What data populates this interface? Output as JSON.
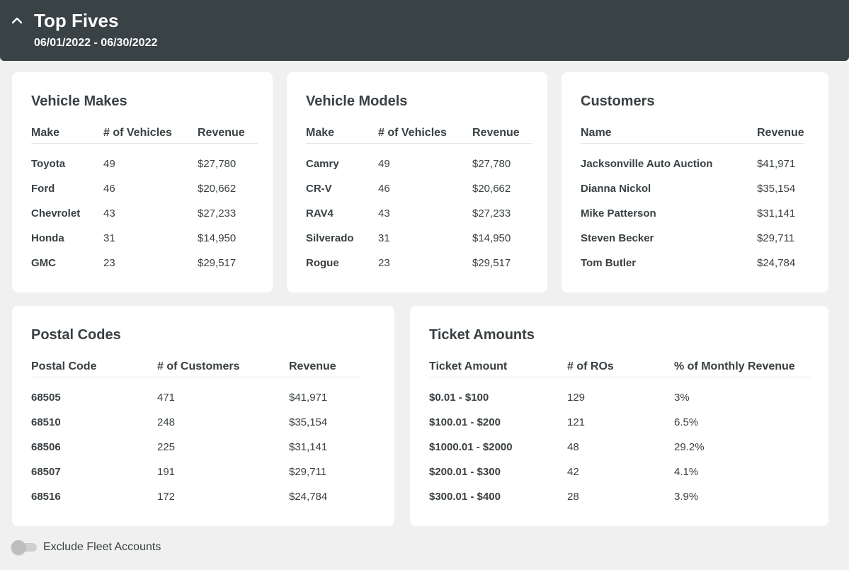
{
  "header": {
    "title": "Top Fives",
    "date_range": "06/01/2022 - 06/30/2022",
    "collapse_icon": "chevron-up-icon"
  },
  "cards": {
    "vehicle_makes": {
      "title": "Vehicle Makes",
      "headers": [
        "Make",
        "# of Vehicles",
        "Revenue"
      ],
      "rows": [
        [
          "Toyota",
          "49",
          "$27,780"
        ],
        [
          "Ford",
          "46",
          "$20,662"
        ],
        [
          "Chevrolet",
          "43",
          "$27,233"
        ],
        [
          "Honda",
          "31",
          "$14,950"
        ],
        [
          "GMC",
          "23",
          "$29,517"
        ]
      ]
    },
    "vehicle_models": {
      "title": "Vehicle Models",
      "headers": [
        "Make",
        "# of Vehicles",
        "Revenue"
      ],
      "rows": [
        [
          "Camry",
          "49",
          "$27,780"
        ],
        [
          "CR-V",
          "46",
          "$20,662"
        ],
        [
          "RAV4",
          "43",
          "$27,233"
        ],
        [
          "Silverado",
          "31",
          "$14,950"
        ],
        [
          "Rogue",
          "23",
          "$29,517"
        ]
      ]
    },
    "customers": {
      "title": "Customers",
      "headers": [
        "Name",
        "Revenue"
      ],
      "rows": [
        [
          "Jacksonville Auto Auction",
          "$41,971"
        ],
        [
          "Dianna Nickol",
          "$35,154"
        ],
        [
          "Mike Patterson",
          "$31,141"
        ],
        [
          "Steven Becker",
          "$29,711"
        ],
        [
          "Tom Butler",
          "$24,784"
        ]
      ]
    },
    "postal_codes": {
      "title": "Postal Codes",
      "headers": [
        "Postal Code",
        "# of Customers",
        "Revenue"
      ],
      "rows": [
        [
          "68505",
          "471",
          "$41,971"
        ],
        [
          "68510",
          "248",
          "$35,154"
        ],
        [
          "68506",
          "225",
          "$31,141"
        ],
        [
          "68507",
          "191",
          "$29,711"
        ],
        [
          "68516",
          "172",
          "$24,784"
        ]
      ]
    },
    "ticket_amounts": {
      "title": "Ticket Amounts",
      "headers": [
        "Ticket Amount",
        "# of ROs",
        "% of Monthly Revenue"
      ],
      "rows": [
        [
          "$0.01 - $100",
          "129",
          "3%"
        ],
        [
          "$100.01 - $200",
          "121",
          "6.5%"
        ],
        [
          "$1000.01 - $2000",
          "48",
          "29.2%"
        ],
        [
          "$200.01 - $300",
          "42",
          "4.1%"
        ],
        [
          "$300.01 - $400",
          "28",
          "3.9%"
        ]
      ]
    }
  },
  "footer": {
    "toggle_label": "Exclude Fleet Accounts",
    "toggle_on": false
  },
  "colors": {
    "header_bg": "#394245",
    "page_bg": "#f0f0f0",
    "card_bg": "#ffffff",
    "text": "#3a4043"
  }
}
